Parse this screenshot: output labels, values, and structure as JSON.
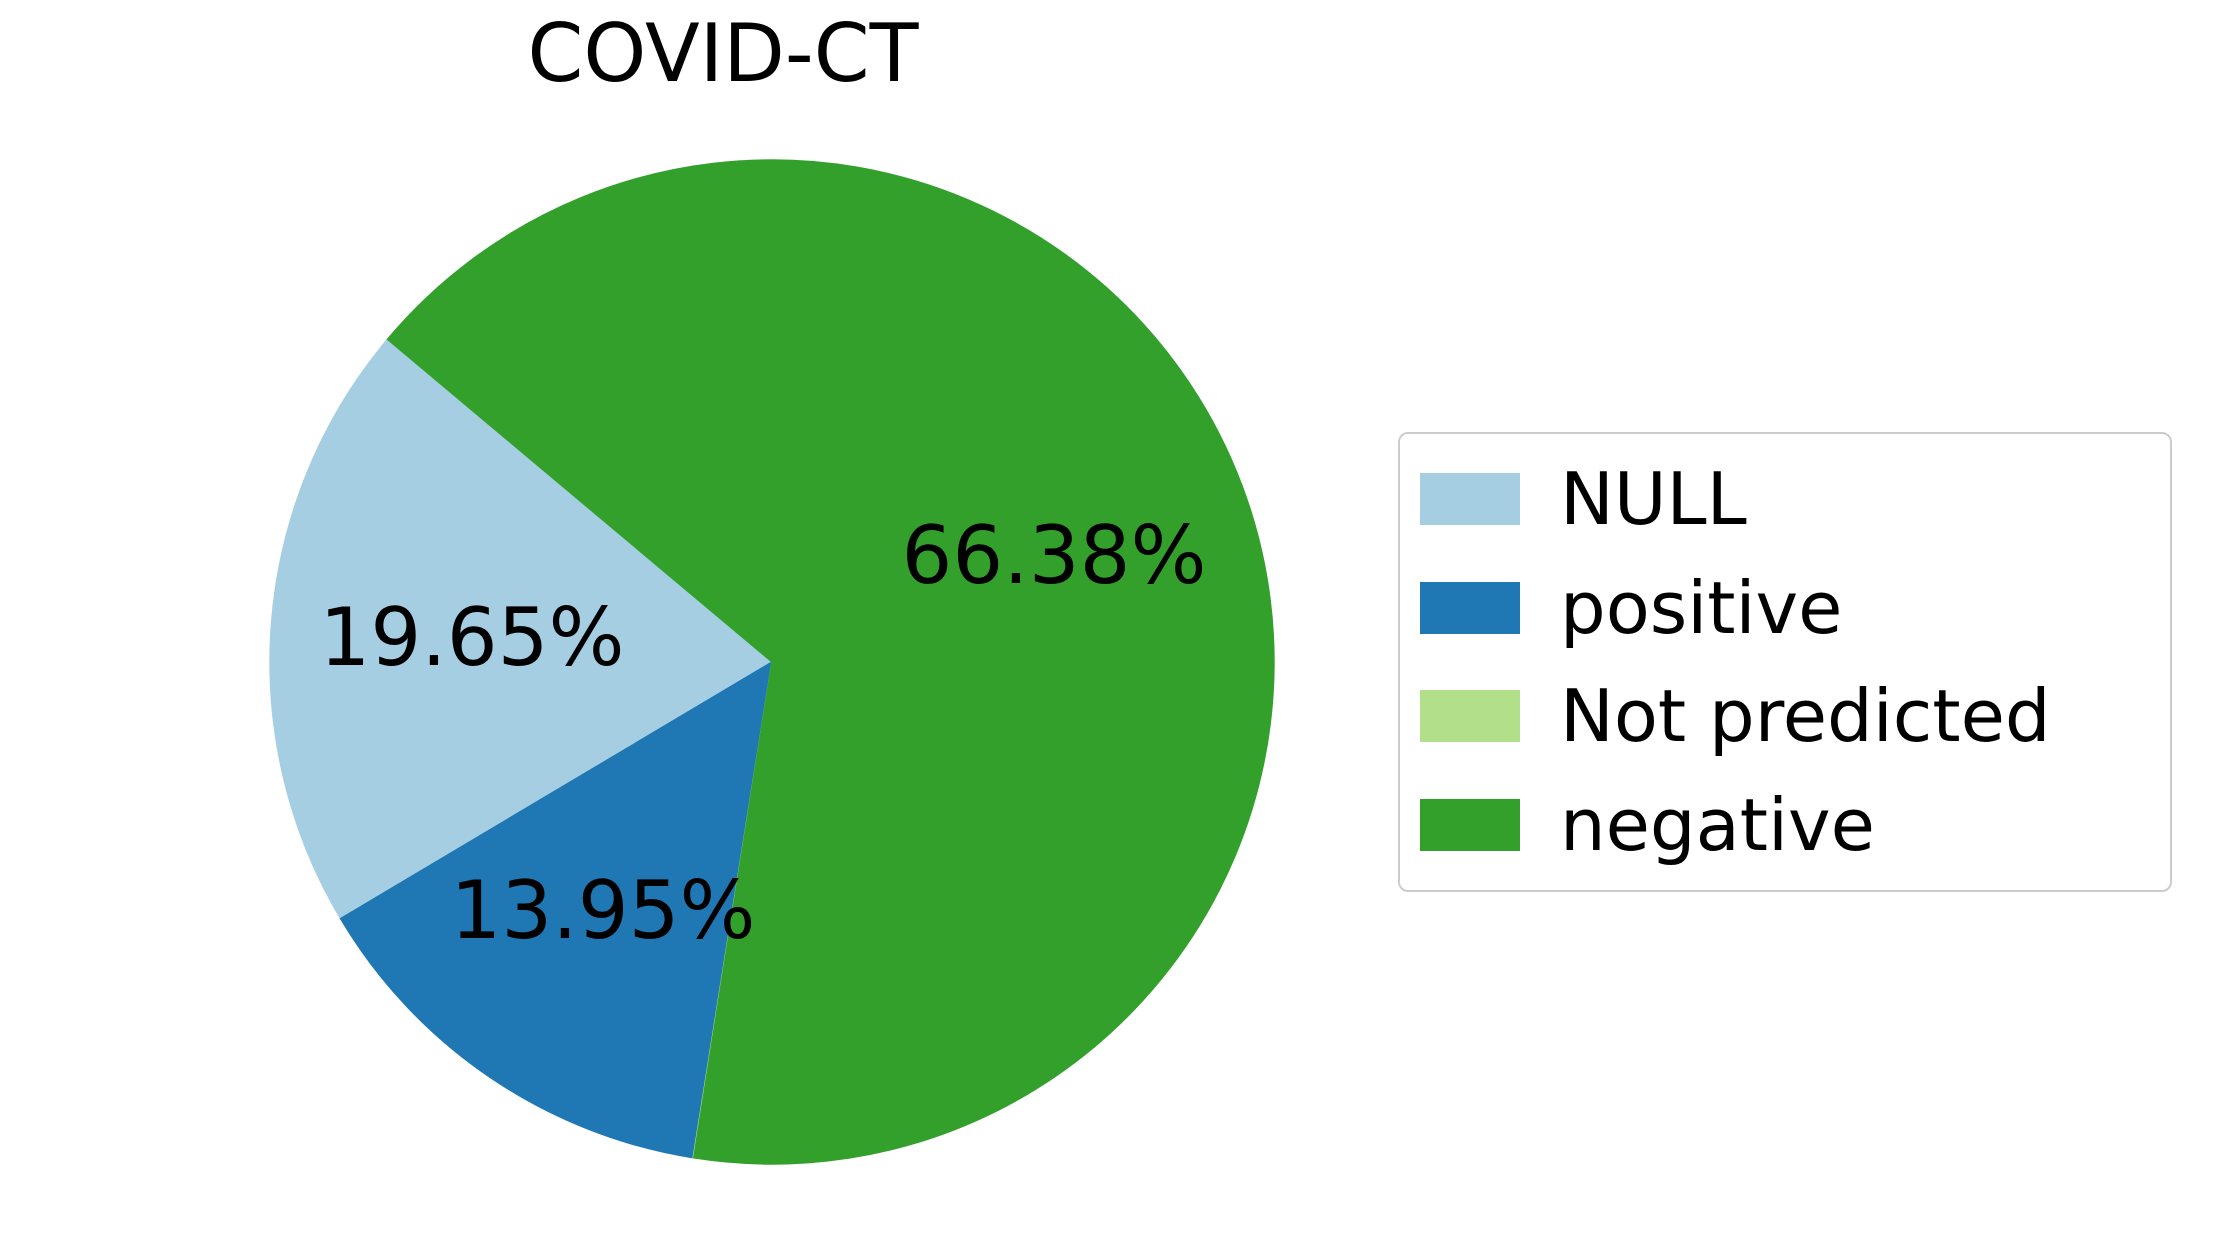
{
  "chart_data": {
    "type": "pie",
    "title": "COVID-CT",
    "slices": [
      {
        "label": "NULL",
        "value": 19.65,
        "pct_label": "19.65%",
        "color": "#a6cee3"
      },
      {
        "label": "positive",
        "value": 13.95,
        "pct_label": "13.95%",
        "color": "#1f78b4"
      },
      {
        "label": "Not predicted",
        "value": 0.02,
        "pct_label": "",
        "color": "#b2df8a"
      },
      {
        "label": "negative",
        "value": 66.38,
        "pct_label": "66.38%",
        "color": "#33a02c"
      }
    ],
    "start_angle_deg": 140,
    "counterclockwise": true,
    "pct_distance": 0.6,
    "legend_position": "right"
  }
}
